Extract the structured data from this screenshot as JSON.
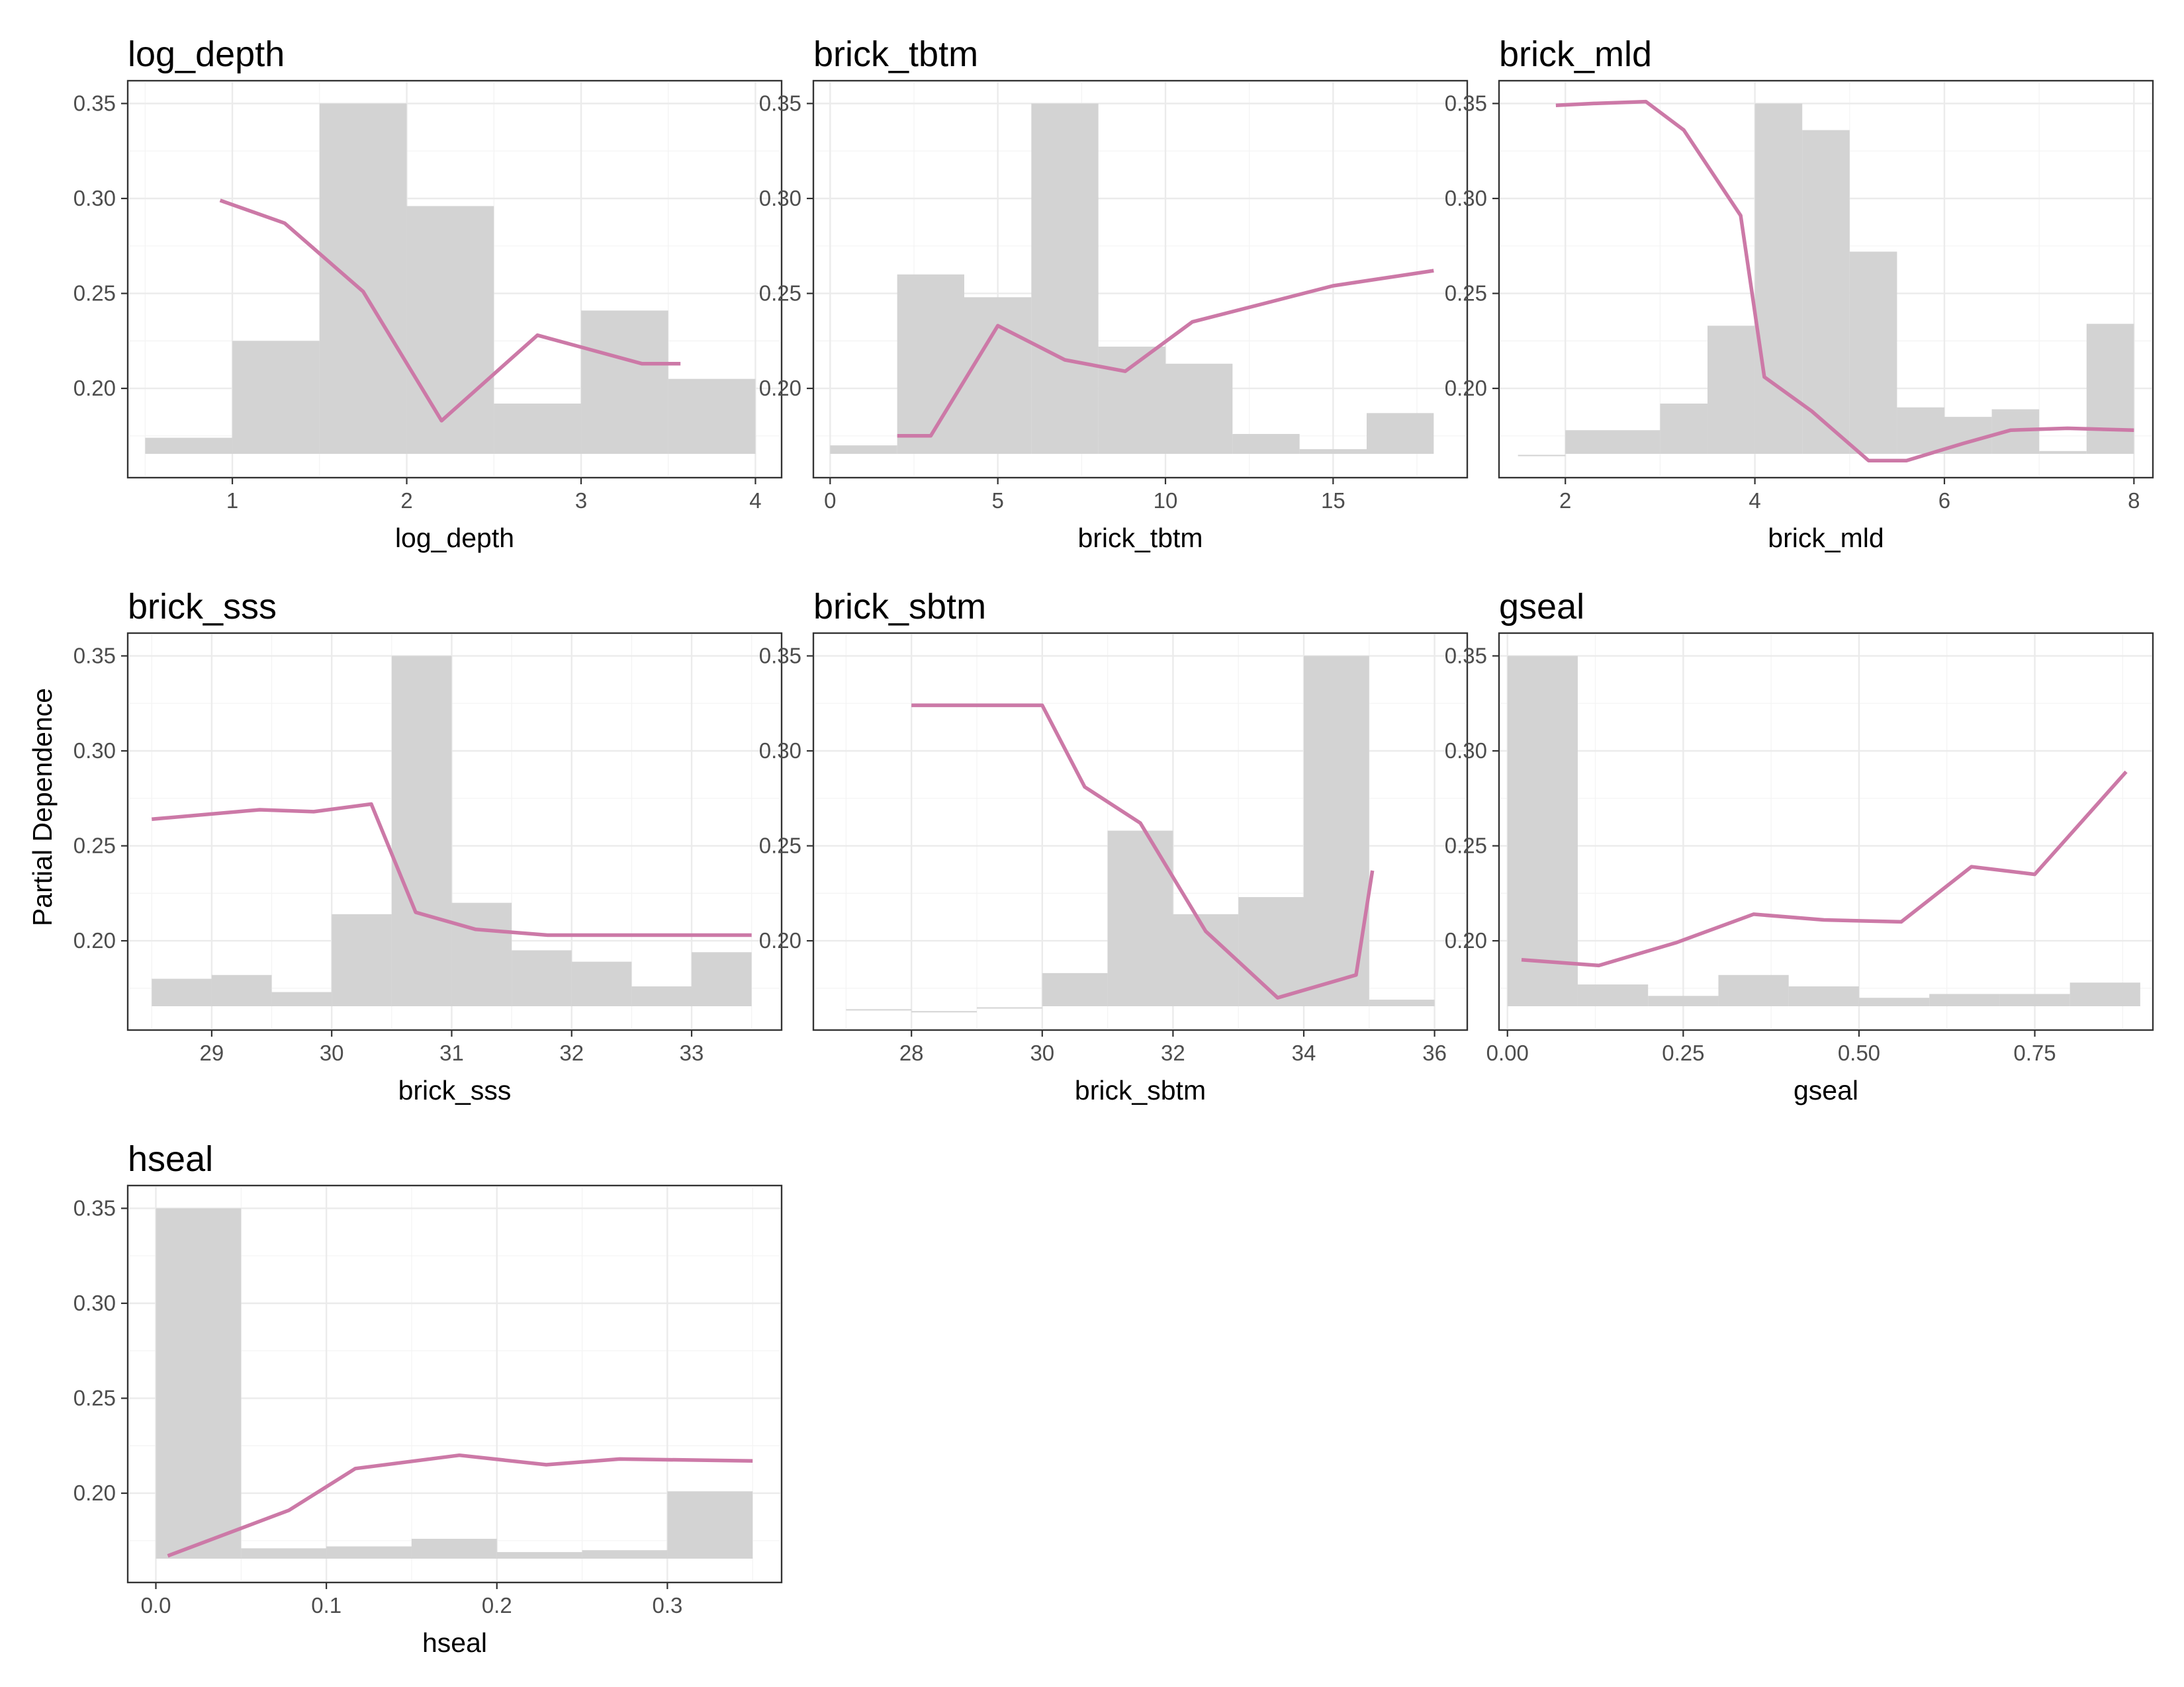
{
  "figure": {
    "ylabel": "Partial Dependence",
    "y_ticks": [
      0.2,
      0.25,
      0.3,
      0.35
    ],
    "y_tick_labels": [
      "0.20",
      "0.25",
      "0.30",
      "0.35"
    ],
    "ylim": [
      0.153,
      0.362
    ],
    "hist_color": "#d3d3d3",
    "line_color": "#cc79a7"
  },
  "chart_data": [
    {
      "type": "line",
      "title": "log_depth",
      "xlabel": "log_depth",
      "xlim": [
        0.4,
        4.15
      ],
      "x_ticks": [
        1,
        2,
        3,
        4
      ],
      "x_tick_labels": [
        "1",
        "2",
        "3",
        "4"
      ],
      "histogram": {
        "edges": [
          0.5,
          1.0,
          1.5,
          2.0,
          2.5,
          3.0,
          3.5,
          4.0
        ],
        "tops": [
          0.174,
          0.225,
          0.35,
          0.296,
          0.192,
          0.241,
          0.205
        ]
      },
      "line": {
        "x": [
          0.93,
          1.3,
          1.75,
          2.2,
          2.75,
          3.35,
          3.57
        ],
        "y": [
          0.299,
          0.287,
          0.251,
          0.183,
          0.228,
          0.213,
          0.213
        ]
      }
    },
    {
      "type": "line",
      "title": "brick_tbtm",
      "xlabel": "brick_tbtm",
      "xlim": [
        -0.5,
        19.0
      ],
      "x_ticks": [
        0,
        5,
        10,
        15
      ],
      "x_tick_labels": [
        "0",
        "5",
        "10",
        "15"
      ],
      "histogram": {
        "edges": [
          0,
          2,
          4,
          6,
          8,
          10,
          12,
          14,
          16,
          18
        ],
        "tops": [
          0.17,
          0.26,
          0.248,
          0.35,
          0.222,
          0.213,
          0.176,
          0.168,
          0.187
        ]
      },
      "line": {
        "x": [
          2.0,
          3.0,
          5.0,
          7.0,
          8.8,
          10.8,
          15.0,
          18.0
        ],
        "y": [
          0.175,
          0.175,
          0.233,
          0.215,
          0.209,
          0.235,
          0.254,
          0.262
        ]
      }
    },
    {
      "type": "line",
      "title": "brick_mld",
      "xlabel": "brick_mld",
      "xlim": [
        1.3,
        8.2
      ],
      "x_ticks": [
        2,
        4,
        6,
        8
      ],
      "x_tick_labels": [
        "2",
        "4",
        "6",
        "8"
      ],
      "histogram": {
        "edges": [
          1.5,
          2.0,
          3.0,
          3.5,
          4.0,
          4.5,
          5.0,
          5.5,
          6.0,
          6.5,
          7.0,
          7.5,
          8.0
        ],
        "tops": [
          0.165,
          0.178,
          0.192,
          0.233,
          0.35,
          0.336,
          0.272,
          0.19,
          0.185,
          0.189,
          0.167,
          0.234
        ]
      },
      "line": {
        "x": [
          1.9,
          2.3,
          2.85,
          3.25,
          3.85,
          4.1,
          4.6,
          5.2,
          5.6,
          6.2,
          6.7,
          7.3,
          8.0
        ],
        "y": [
          0.349,
          0.35,
          0.351,
          0.336,
          0.291,
          0.206,
          0.188,
          0.162,
          0.162,
          0.171,
          0.178,
          0.179,
          0.178
        ]
      }
    },
    {
      "type": "line",
      "title": "brick_sss",
      "xlabel": "brick_sss",
      "xlim": [
        28.3,
        33.75
      ],
      "x_ticks": [
        29,
        30,
        31,
        32,
        33
      ],
      "x_tick_labels": [
        "29",
        "30",
        "31",
        "32",
        "33"
      ],
      "histogram": {
        "edges": [
          28.5,
          29.0,
          29.5,
          30.0,
          30.5,
          31.0,
          31.5,
          32.0,
          32.5,
          33.0,
          33.5
        ],
        "tops": [
          0.18,
          0.182,
          0.173,
          0.214,
          0.35,
          0.22,
          0.195,
          0.189,
          0.176,
          0.194
        ]
      },
      "line": {
        "x": [
          28.5,
          29.4,
          29.85,
          30.33,
          30.7,
          31.2,
          31.8,
          33.5
        ],
        "y": [
          0.264,
          0.269,
          0.268,
          0.272,
          0.215,
          0.206,
          0.203,
          0.203
        ]
      }
    },
    {
      "type": "line",
      "title": "brick_sbtm",
      "xlabel": "brick_sbtm",
      "xlim": [
        26.5,
        36.5
      ],
      "x_ticks": [
        28,
        30,
        32,
        34,
        36
      ],
      "x_tick_labels": [
        "28",
        "30",
        "32",
        "34",
        "36"
      ],
      "histogram": {
        "edges": [
          27,
          28,
          29,
          30,
          31,
          32,
          33,
          34,
          35,
          36
        ],
        "tops": [
          0.164,
          0.163,
          0.165,
          0.183,
          0.258,
          0.214,
          0.223,
          0.35,
          0.169
        ]
      },
      "line": {
        "x": [
          28.0,
          30.0,
          30.65,
          31.5,
          32.5,
          33.6,
          34.8,
          35.05
        ],
        "y": [
          0.324,
          0.324,
          0.281,
          0.262,
          0.205,
          0.17,
          0.182,
          0.237
        ]
      }
    },
    {
      "type": "line",
      "title": "gseal",
      "xlabel": "gseal",
      "xlim": [
        -0.012,
        0.918
      ],
      "x_ticks": [
        0.0,
        0.25,
        0.5,
        0.75
      ],
      "x_tick_labels": [
        "0.00",
        "0.25",
        "0.50",
        "0.75"
      ],
      "histogram": {
        "edges": [
          0.0,
          0.1,
          0.2,
          0.3,
          0.4,
          0.5,
          0.6,
          0.7,
          0.8,
          0.9
        ],
        "tops": [
          0.35,
          0.177,
          0.171,
          0.182,
          0.176,
          0.17,
          0.172,
          0.172,
          0.178
        ]
      },
      "line": {
        "x": [
          0.02,
          0.13,
          0.24,
          0.35,
          0.45,
          0.56,
          0.66,
          0.75,
          0.88
        ],
        "y": [
          0.19,
          0.187,
          0.199,
          0.214,
          0.211,
          0.21,
          0.239,
          0.235,
          0.289
        ]
      }
    },
    {
      "type": "line",
      "title": "hseal",
      "xlabel": "hseal",
      "xlim": [
        -0.0165,
        0.367
      ],
      "x_ticks": [
        0.0,
        0.1,
        0.2,
        0.3
      ],
      "x_tick_labels": [
        "0.0",
        "0.1",
        "0.2",
        "0.3"
      ],
      "histogram": {
        "edges": [
          0.0,
          0.05,
          0.1,
          0.15,
          0.2,
          0.25,
          0.3,
          0.35
        ],
        "tops": [
          0.35,
          0.171,
          0.172,
          0.176,
          0.169,
          0.17,
          0.201
        ]
      },
      "line": {
        "x": [
          0.007,
          0.078,
          0.117,
          0.178,
          0.229,
          0.272,
          0.35
        ],
        "y": [
          0.167,
          0.191,
          0.213,
          0.22,
          0.215,
          0.218,
          0.217
        ]
      }
    }
  ]
}
